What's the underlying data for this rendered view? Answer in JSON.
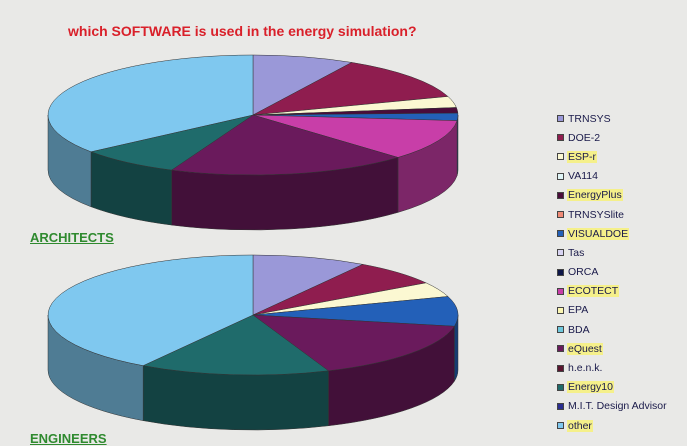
{
  "chart_data": [
    {
      "type": "pie",
      "group": "ARCHITECTS",
      "labels": [
        "TRNSYS",
        "DOE-2",
        "ESP-r",
        "VA114",
        "EnergyPlus",
        "TRNSYSlite",
        "VISUALDOE",
        "Tas",
        "ORCA",
        "ECOTECT",
        "EPA",
        "BDA",
        "eQuest",
        "h.e.n.k.",
        "Energy10",
        "M.I.T. Design Advisor",
        "other"
      ],
      "values": [
        8,
        12,
        3,
        0,
        1.5,
        0,
        2,
        0,
        0,
        11,
        0,
        0,
        19,
        0,
        8,
        0,
        35.5
      ]
    },
    {
      "type": "pie",
      "group": "ENGINEERS",
      "labels": [
        "TRNSYS",
        "DOE-2",
        "ESP-r",
        "VA114",
        "EnergyPlus",
        "TRNSYSlite",
        "VISUALDOE",
        "Tas",
        "ORCA",
        "ECOTECT",
        "EPA",
        "BDA",
        "eQuest",
        "h.e.n.k.",
        "Energy10",
        "M.I.T. Design Advisor",
        "other"
      ],
      "values": [
        9,
        7,
        4,
        0,
        0,
        0,
        8,
        0,
        0,
        0,
        0,
        0,
        16,
        0,
        15,
        0,
        41
      ]
    }
  ],
  "title": "which SOFTWARE is used in the energy simulation?",
  "group_labels": {
    "architects": "ARCHITECTS",
    "engineers": "ENGINEERS"
  },
  "legend": [
    {
      "label": "TRNSYS",
      "color": "#9a98d8",
      "highlight": false
    },
    {
      "label": "DOE-2",
      "color": "#8f1d4f",
      "highlight": false
    },
    {
      "label": "ESP-r",
      "color": "#fbf8d2",
      "highlight": true
    },
    {
      "label": "VA114",
      "color": "#dff4f6",
      "highlight": false
    },
    {
      "label": "EnergyPlus",
      "color": "#4a0c3a",
      "highlight": true
    },
    {
      "label": "TRNSYSlite",
      "color": "#f08a76",
      "highlight": false
    },
    {
      "label": "VISUALDOE",
      "color": "#2360b8",
      "highlight": true
    },
    {
      "label": "Tas",
      "color": "#d8d4f2",
      "highlight": false
    },
    {
      "label": "ORCA",
      "color": "#0d1648",
      "highlight": false
    },
    {
      "label": "ECOTECT",
      "color": "#c83ea8",
      "highlight": true
    },
    {
      "label": "EPA",
      "color": "#fbf6b2",
      "highlight": false
    },
    {
      "label": "BDA",
      "color": "#6ec7dc",
      "highlight": false
    },
    {
      "label": "eQuest",
      "color": "#6a1a5c",
      "highlight": true
    },
    {
      "label": "h.e.n.k.",
      "color": "#5a1530",
      "highlight": false
    },
    {
      "label": "Energy10",
      "color": "#1f6b6b",
      "highlight": true
    },
    {
      "label": "M.I.T. Design Advisor",
      "color": "#2a2e90",
      "highlight": false
    },
    {
      "label": "other",
      "color": "#7fc8ef",
      "highlight": true
    }
  ]
}
